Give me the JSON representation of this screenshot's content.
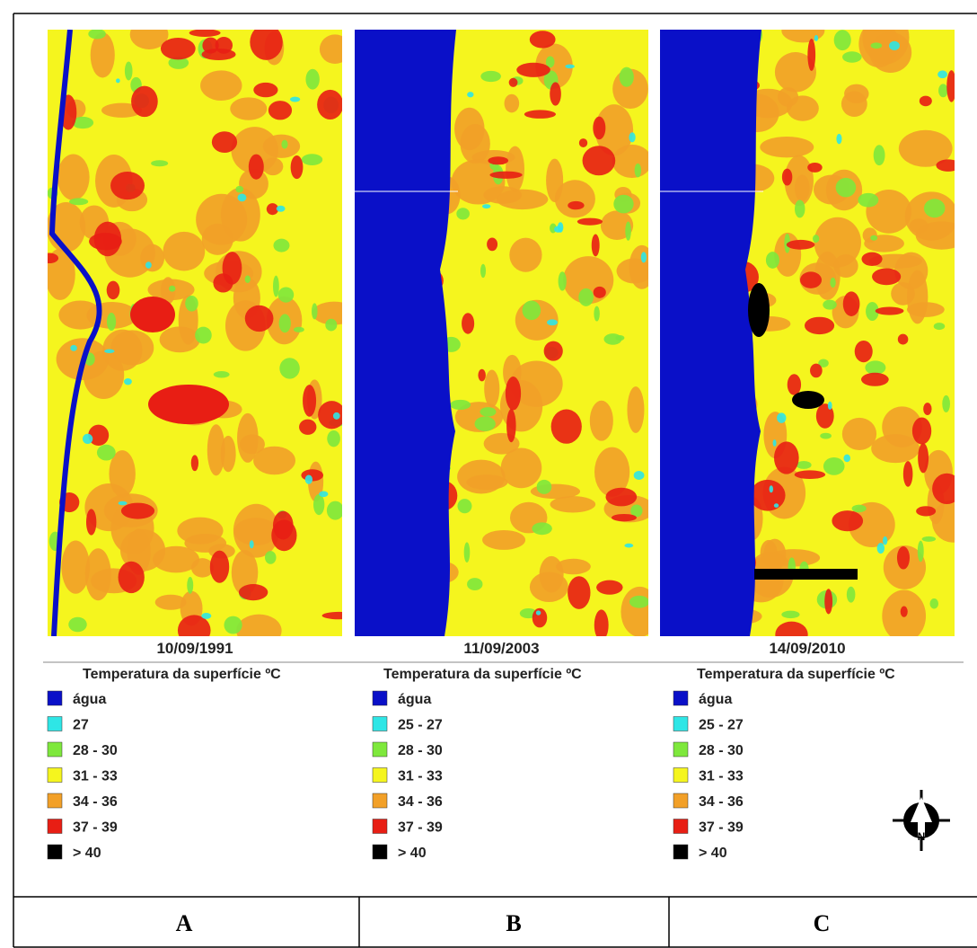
{
  "panels": [
    {
      "date": "10/09/1991",
      "legend_title": "Temperatura da superfície ºC",
      "legend": [
        {
          "label": "água",
          "color": "#0a10c8"
        },
        {
          "label": "27",
          "color": "#2ee6e6"
        },
        {
          "label": "28 - 30",
          "color": "#7ee83c"
        },
        {
          "label": "31 - 33",
          "color": "#f5f51e"
        },
        {
          "label": "34 - 36",
          "color": "#f2a028"
        },
        {
          "label": "37 - 39",
          "color": "#e81e14"
        },
        {
          "label": "> 40",
          "color": "#000000"
        }
      ]
    },
    {
      "date": "11/09/2003",
      "legend_title": "Temperatura da superfície ºC",
      "legend": [
        {
          "label": "água",
          "color": "#0a10c8"
        },
        {
          "label": "25 - 27",
          "color": "#2ee6e6"
        },
        {
          "label": "28 - 30",
          "color": "#7ee83c"
        },
        {
          "label": "31 - 33",
          "color": "#f5f51e"
        },
        {
          "label": "34 - 36",
          "color": "#f2a028"
        },
        {
          "label": "37 - 39",
          "color": "#e81e14"
        },
        {
          "label": "> 40",
          "color": "#000000"
        }
      ]
    },
    {
      "date": "14/09/2010",
      "legend_title": "Temperatura da superfície ºC",
      "legend": [
        {
          "label": "água",
          "color": "#0a10c8"
        },
        {
          "label": "25 - 27",
          "color": "#2ee6e6"
        },
        {
          "label": "28 - 30",
          "color": "#7ee83c"
        },
        {
          "label": "31 - 33",
          "color": "#f5f51e"
        },
        {
          "label": "34 - 36",
          "color": "#f2a028"
        },
        {
          "label": "37 - 39",
          "color": "#e81e14"
        },
        {
          "label": "> 40",
          "color": "#000000"
        }
      ]
    }
  ],
  "labels": [
    "A",
    "B",
    "C"
  ]
}
